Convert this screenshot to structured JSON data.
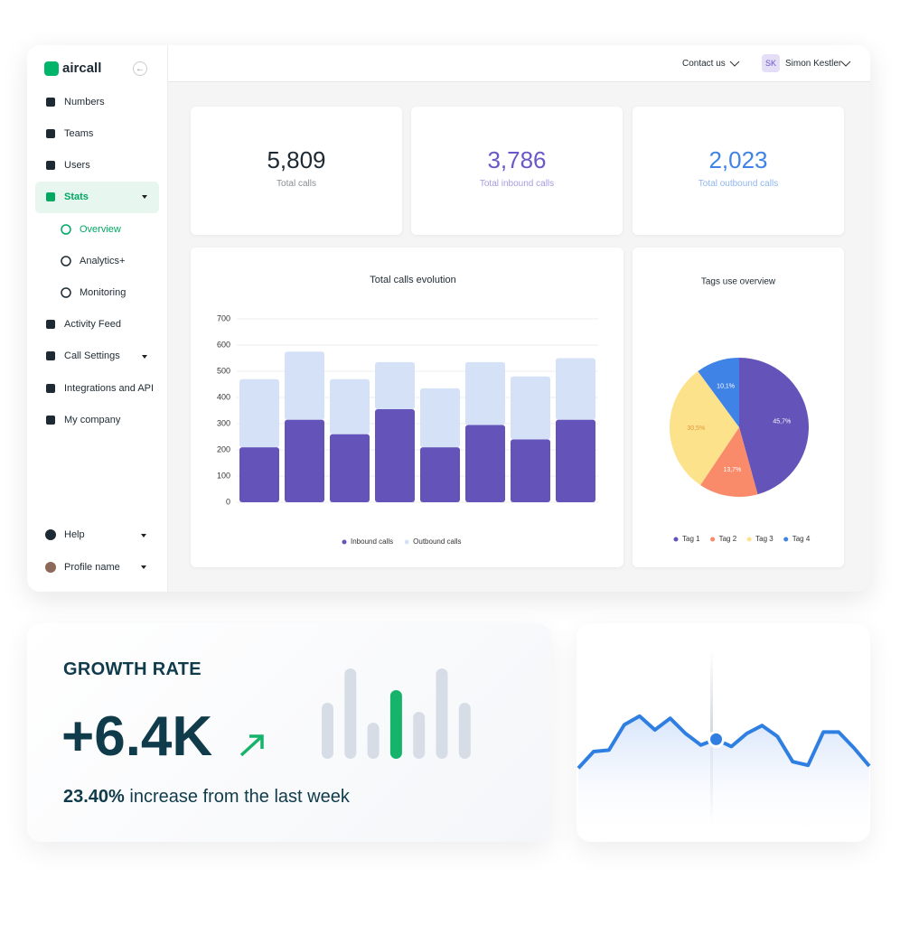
{
  "sidebar": {
    "brand": "aircall",
    "items": [
      "Numbers",
      "Teams",
      "Users",
      "Stats",
      "Activity Feed",
      "Call Settings",
      "Integrations and API",
      "My company"
    ],
    "sub_items": [
      "Overview",
      "Analytics+",
      "Monitoring"
    ],
    "footer_items": [
      "Help",
      "Profile name"
    ]
  },
  "header": {
    "contact": "Contact us",
    "initials": "SK",
    "user": "Simon Kestler"
  },
  "kpis": [
    {
      "value": "5,809",
      "label": "Total calls"
    },
    {
      "value": "3,786",
      "label": "Total inbound calls"
    },
    {
      "value": "2,023",
      "label": "Total outbound calls"
    }
  ],
  "growth": {
    "title": "GROWTH RATE",
    "value": "+6.4K",
    "percent": "23.40%",
    "text": "increase from the last week"
  },
  "chart_data": [
    {
      "type": "bar",
      "stacked": true,
      "title": "Total calls evolution",
      "categories": [
        null,
        null,
        null,
        null,
        null,
        null,
        null,
        null
      ],
      "series": [
        {
          "name": "Inbound calls",
          "color": "#6453b9",
          "values": [
            210,
            315,
            260,
            355,
            210,
            295,
            240,
            315
          ]
        },
        {
          "name": "Outbound calls",
          "color": "#d4e1f6",
          "values": [
            260,
            260,
            210,
            180,
            225,
            240,
            240,
            235
          ]
        }
      ],
      "ylim": [
        0,
        700
      ],
      "yticks": [
        0,
        100,
        200,
        300,
        400,
        500,
        600,
        700
      ],
      "grid": true,
      "legend": "bottom"
    },
    {
      "type": "pie",
      "title": "Tags use overview",
      "categories": [
        "Tag 1",
        "Tag 2",
        "Tag 3",
        "Tag 4"
      ],
      "values": [
        45.7,
        13.7,
        30.5,
        10.1
      ],
      "value_labels": [
        "45,7%",
        "13,7%",
        "30,5%",
        "10,1%"
      ],
      "colors": [
        "#6453b9",
        "#f98b6a",
        "#fde28c",
        "#3f83e6"
      ],
      "legend": "bottom"
    },
    {
      "type": "bar",
      "values": [
        62,
        100,
        40,
        76,
        52,
        100,
        62
      ],
      "colors": [
        "#d7dde6",
        "#d7dde6",
        "#d7dde6",
        "#16b46b",
        "#d7dde6",
        "#d7dde6",
        "#d7dde6"
      ],
      "ylim": [
        0,
        100
      ]
    },
    {
      "type": "line",
      "values": [
        12,
        35,
        37,
        72,
        84,
        65,
        81,
        60,
        44,
        52,
        42,
        60,
        71,
        56,
        21,
        16,
        62,
        62,
        40,
        15
      ],
      "color": "#2f7fe3",
      "ylim": [
        0,
        100
      ]
    }
  ]
}
